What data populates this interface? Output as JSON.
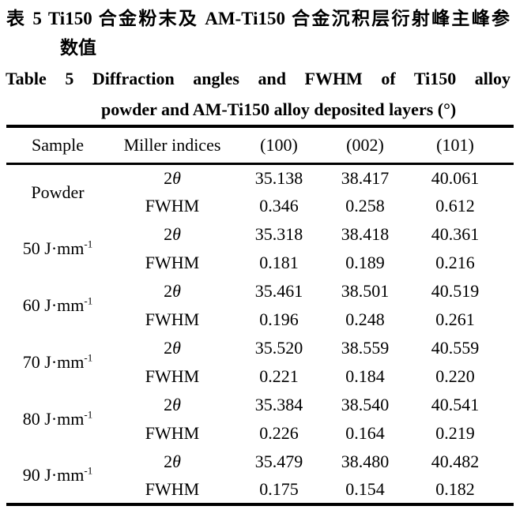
{
  "caption_zh": {
    "line1": "表 5  Ti150 合金粉末及 AM-Ti150 合金沉积层衍射峰主峰参",
    "line2": "数值"
  },
  "caption_en": {
    "line1": "Table 5  Diffraction angles and FWHM of Ti150 alloy",
    "line2": "powder and AM-Ti150 alloy deposited layers (°)"
  },
  "table": {
    "headers": [
      "Sample",
      "Miller indices",
      "(100)",
      "(002)",
      "(101)"
    ],
    "groups": [
      {
        "sample": "Powder",
        "sample_sup": "",
        "rows": [
          {
            "param": "2θ",
            "values": [
              "35.138",
              "38.417",
              "40.061"
            ]
          },
          {
            "param": "FWHM",
            "values": [
              "0.346",
              "0.258",
              "0.612"
            ]
          }
        ]
      },
      {
        "sample": "50 J·mm",
        "sample_sup": "-1",
        "rows": [
          {
            "param": "2θ",
            "values": [
              "35.318",
              "38.418",
              "40.361"
            ]
          },
          {
            "param": "FWHM",
            "values": [
              "0.181",
              "0.189",
              "0.216"
            ]
          }
        ]
      },
      {
        "sample": "60 J·mm",
        "sample_sup": "-1",
        "rows": [
          {
            "param": "2θ",
            "values": [
              "35.461",
              "38.501",
              "40.519"
            ]
          },
          {
            "param": "FWHM",
            "values": [
              "0.196",
              "0.248",
              "0.261"
            ]
          }
        ]
      },
      {
        "sample": "70 J·mm",
        "sample_sup": "-1",
        "rows": [
          {
            "param": "2θ",
            "values": [
              "35.520",
              "38.559",
              "40.559"
            ]
          },
          {
            "param": "FWHM",
            "values": [
              "0.221",
              "0.184",
              "0.220"
            ]
          }
        ]
      },
      {
        "sample": "80 J·mm",
        "sample_sup": "-1",
        "rows": [
          {
            "param": "2θ",
            "values": [
              "35.384",
              "38.540",
              "40.541"
            ]
          },
          {
            "param": "FWHM",
            "values": [
              "0.226",
              "0.164",
              "0.219"
            ]
          }
        ]
      },
      {
        "sample": "90 J·mm",
        "sample_sup": "-1",
        "rows": [
          {
            "param": "2θ",
            "values": [
              "35.479",
              "38.480",
              "40.482"
            ]
          },
          {
            "param": "FWHM",
            "values": [
              "0.175",
              "0.154",
              "0.182"
            ]
          }
        ]
      }
    ]
  },
  "chart_data": {
    "type": "table",
    "title": "Table 5 Diffraction angles and FWHM of Ti150 alloy powder and AM-Ti150 alloy deposited layers (°)",
    "columns": [
      "Sample",
      "Miller indices",
      "(100)",
      "(002)",
      "(101)"
    ],
    "rows": [
      [
        "Powder",
        "2θ",
        35.138,
        38.417,
        40.061
      ],
      [
        "Powder",
        "FWHM",
        0.346,
        0.258,
        0.612
      ],
      [
        "50 J·mm⁻¹",
        "2θ",
        35.318,
        38.418,
        40.361
      ],
      [
        "50 J·mm⁻¹",
        "FWHM",
        0.181,
        0.189,
        0.216
      ],
      [
        "60 J·mm⁻¹",
        "2θ",
        35.461,
        38.501,
        40.519
      ],
      [
        "60 J·mm⁻¹",
        "FWHM",
        0.196,
        0.248,
        0.261
      ],
      [
        "70 J·mm⁻¹",
        "2θ",
        35.52,
        38.559,
        40.559
      ],
      [
        "70 J·mm⁻¹",
        "FWHM",
        0.221,
        0.184,
        0.22
      ],
      [
        "80 J·mm⁻¹",
        "2θ",
        35.384,
        38.54,
        40.541
      ],
      [
        "80 J·mm⁻¹",
        "FWHM",
        0.226,
        0.164,
        0.219
      ],
      [
        "90 J·mm⁻¹",
        "2θ",
        35.479,
        38.48,
        40.482
      ],
      [
        "90 J·mm⁻¹",
        "FWHM",
        0.175,
        0.154,
        0.182
      ]
    ]
  }
}
